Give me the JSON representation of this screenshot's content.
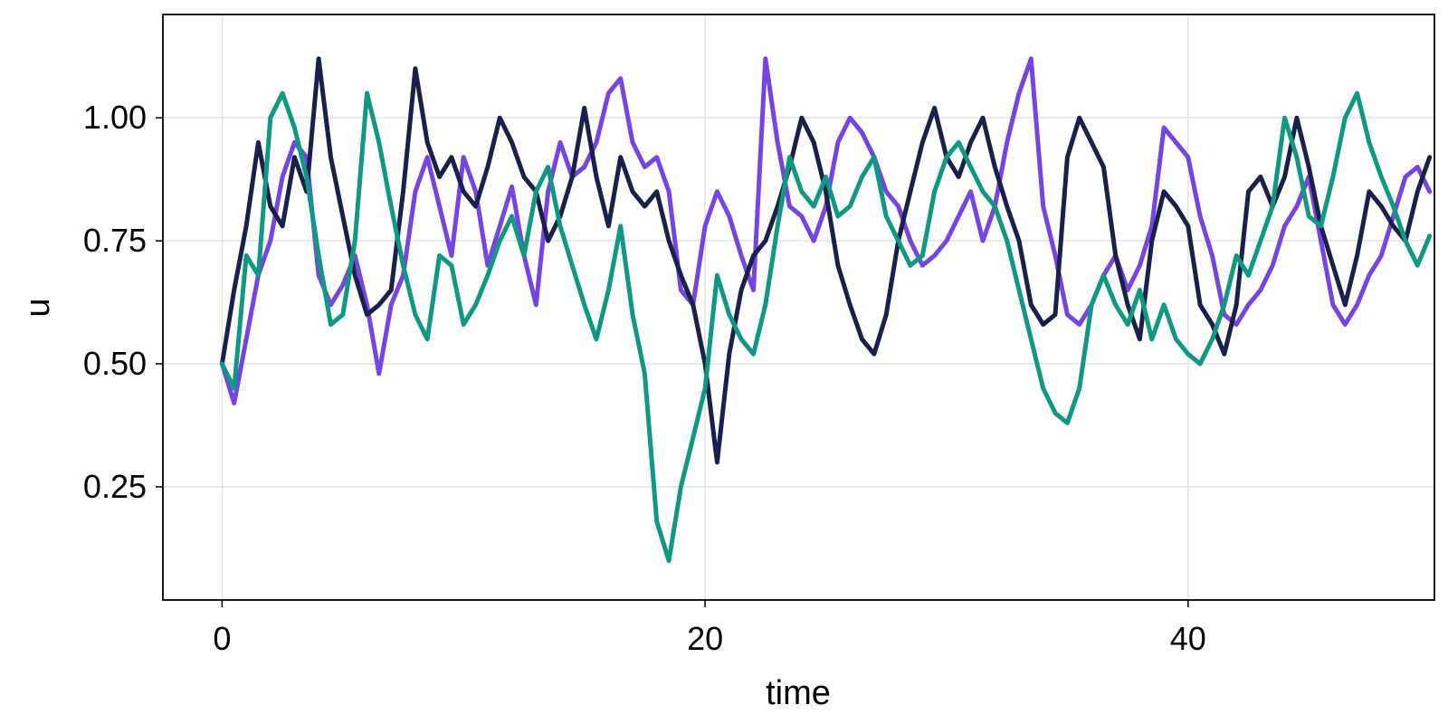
{
  "chart_data": {
    "type": "line",
    "title": "",
    "xlabel": "time",
    "ylabel": "u",
    "xlim": [
      -2.45,
      50.2
    ],
    "ylim": [
      0.02,
      1.21
    ],
    "xticks": [
      0,
      20,
      40
    ],
    "xtick_labels": [
      "0",
      "20",
      "40"
    ],
    "yticks": [
      0.25,
      0.5,
      0.75,
      1.0
    ],
    "ytick_labels": [
      "0.25",
      "0.50",
      "0.75",
      "1.00"
    ],
    "grid": true,
    "legend": "none",
    "series": [
      {
        "color": "#7545e3",
        "x": [
          0,
          0.5,
          1,
          1.5,
          2,
          2.5,
          3,
          3.5,
          4,
          4.5,
          5,
          5.5,
          6,
          6.5,
          7,
          7.5,
          8,
          8.5,
          9,
          9.5,
          10,
          10.5,
          11,
          11.5,
          12,
          12.5,
          13,
          13.5,
          14,
          14.5,
          15,
          15.5,
          16,
          16.5,
          17,
          17.5,
          18,
          18.5,
          19,
          19.5,
          20,
          20.5,
          21,
          21.5,
          22,
          22.5,
          23,
          23.5,
          24,
          24.5,
          25,
          25.5,
          26,
          26.5,
          27,
          27.5,
          28,
          28.5,
          29,
          29.5,
          30,
          30.5,
          31,
          31.5,
          32,
          32.5,
          33,
          33.5,
          34,
          34.5,
          35,
          35.5,
          36,
          36.5,
          37,
          37.5,
          38,
          38.5,
          39,
          39.5,
          40,
          40.5,
          41,
          41.5,
          42,
          42.5,
          43,
          43.5,
          44,
          44.5,
          45,
          45.5,
          46,
          46.5,
          47,
          47.5,
          48,
          48.5,
          49,
          49.5,
          50
        ],
        "y": [
          0.5,
          0.42,
          0.55,
          0.68,
          0.75,
          0.88,
          0.95,
          0.92,
          0.68,
          0.62,
          0.66,
          0.72,
          0.62,
          0.48,
          0.62,
          0.68,
          0.85,
          0.92,
          0.82,
          0.72,
          0.92,
          0.85,
          0.7,
          0.78,
          0.86,
          0.72,
          0.62,
          0.85,
          0.95,
          0.88,
          0.9,
          0.95,
          1.05,
          1.08,
          0.95,
          0.9,
          0.92,
          0.85,
          0.65,
          0.62,
          0.78,
          0.85,
          0.8,
          0.72,
          0.65,
          1.12,
          0.95,
          0.82,
          0.8,
          0.75,
          0.82,
          0.95,
          1.0,
          0.97,
          0.92,
          0.85,
          0.82,
          0.75,
          0.7,
          0.72,
          0.75,
          0.8,
          0.85,
          0.75,
          0.82,
          0.95,
          1.05,
          1.12,
          0.82,
          0.72,
          0.6,
          0.58,
          0.62,
          0.68,
          0.72,
          0.65,
          0.7,
          0.78,
          0.98,
          0.95,
          0.92,
          0.8,
          0.72,
          0.6,
          0.58,
          0.62,
          0.65,
          0.7,
          0.78,
          0.82,
          0.88,
          0.75,
          0.62,
          0.58,
          0.62,
          0.68,
          0.72,
          0.8,
          0.88,
          0.9,
          0.85
        ]
      },
      {
        "color": "#1b1f4b",
        "x": [
          0,
          0.5,
          1,
          1.5,
          2,
          2.5,
          3,
          3.5,
          4,
          4.5,
          5,
          5.5,
          6,
          6.5,
          7,
          7.5,
          8,
          8.5,
          9,
          9.5,
          10,
          10.5,
          11,
          11.5,
          12,
          12.5,
          13,
          13.5,
          14,
          14.5,
          15,
          15.5,
          16,
          16.5,
          17,
          17.5,
          18,
          18.5,
          19,
          19.5,
          20,
          20.5,
          21,
          21.5,
          22,
          22.5,
          23,
          23.5,
          24,
          24.5,
          25,
          25.5,
          26,
          26.5,
          27,
          27.5,
          28,
          28.5,
          29,
          29.5,
          30,
          30.5,
          31,
          31.5,
          32,
          32.5,
          33,
          33.5,
          34,
          34.5,
          35,
          35.5,
          36,
          36.5,
          37,
          37.5,
          38,
          38.5,
          39,
          39.5,
          40,
          40.5,
          41,
          41.5,
          42,
          42.5,
          43,
          43.5,
          44,
          44.5,
          45,
          45.5,
          46,
          46.5,
          47,
          47.5,
          48,
          48.5,
          49,
          49.5,
          50
        ],
        "y": [
          0.5,
          0.65,
          0.78,
          0.95,
          0.82,
          0.78,
          0.92,
          0.85,
          1.12,
          0.92,
          0.8,
          0.68,
          0.6,
          0.62,
          0.65,
          0.85,
          1.1,
          0.95,
          0.88,
          0.92,
          0.85,
          0.82,
          0.9,
          1.0,
          0.95,
          0.88,
          0.85,
          0.75,
          0.8,
          0.88,
          1.02,
          0.88,
          0.78,
          0.92,
          0.85,
          0.82,
          0.85,
          0.75,
          0.68,
          0.62,
          0.5,
          0.3,
          0.52,
          0.65,
          0.72,
          0.75,
          0.82,
          0.9,
          1.0,
          0.95,
          0.85,
          0.7,
          0.62,
          0.55,
          0.52,
          0.6,
          0.75,
          0.85,
          0.95,
          1.02,
          0.92,
          0.88,
          0.95,
          1.0,
          0.9,
          0.82,
          0.75,
          0.62,
          0.58,
          0.6,
          0.92,
          1.0,
          0.95,
          0.9,
          0.72,
          0.62,
          0.55,
          0.75,
          0.85,
          0.82,
          0.78,
          0.62,
          0.58,
          0.52,
          0.62,
          0.85,
          0.88,
          0.82,
          0.88,
          1.0,
          0.9,
          0.78,
          0.7,
          0.62,
          0.72,
          0.85,
          0.82,
          0.78,
          0.75,
          0.85,
          0.92
        ]
      },
      {
        "color": "#0f9882",
        "x": [
          0,
          0.5,
          1,
          1.5,
          2,
          2.5,
          3,
          3.5,
          4,
          4.5,
          5,
          5.5,
          6,
          6.5,
          7,
          7.5,
          8,
          8.5,
          9,
          9.5,
          10,
          10.5,
          11,
          11.5,
          12,
          12.5,
          13,
          13.5,
          14,
          14.5,
          15,
          15.5,
          16,
          16.5,
          17,
          17.5,
          18,
          18.5,
          19,
          19.5,
          20,
          20.5,
          21,
          21.5,
          22,
          22.5,
          23,
          23.5,
          24,
          24.5,
          25,
          25.5,
          26,
          26.5,
          27,
          27.5,
          28,
          28.5,
          29,
          29.5,
          30,
          30.5,
          31,
          31.5,
          32,
          32.5,
          33,
          33.5,
          34,
          34.5,
          35,
          35.5,
          36,
          36.5,
          37,
          37.5,
          38,
          38.5,
          39,
          39.5,
          40,
          40.5,
          41,
          41.5,
          42,
          42.5,
          43,
          43.5,
          44,
          44.5,
          45,
          45.5,
          46,
          46.5,
          47,
          47.5,
          48,
          48.5,
          49,
          49.5,
          50
        ],
        "y": [
          0.5,
          0.45,
          0.72,
          0.68,
          1.0,
          1.05,
          0.98,
          0.88,
          0.72,
          0.58,
          0.6,
          0.75,
          1.05,
          0.95,
          0.82,
          0.7,
          0.6,
          0.55,
          0.72,
          0.7,
          0.58,
          0.62,
          0.68,
          0.75,
          0.8,
          0.72,
          0.85,
          0.9,
          0.78,
          0.7,
          0.62,
          0.55,
          0.65,
          0.78,
          0.6,
          0.48,
          0.18,
          0.1,
          0.25,
          0.35,
          0.45,
          0.68,
          0.6,
          0.55,
          0.52,
          0.62,
          0.78,
          0.92,
          0.85,
          0.82,
          0.88,
          0.8,
          0.82,
          0.88,
          0.92,
          0.8,
          0.75,
          0.7,
          0.72,
          0.85,
          0.92,
          0.95,
          0.9,
          0.85,
          0.82,
          0.75,
          0.65,
          0.55,
          0.45,
          0.4,
          0.38,
          0.45,
          0.62,
          0.68,
          0.62,
          0.58,
          0.65,
          0.55,
          0.62,
          0.55,
          0.52,
          0.5,
          0.55,
          0.62,
          0.72,
          0.68,
          0.75,
          0.82,
          1.0,
          0.92,
          0.8,
          0.78,
          0.88,
          1.0,
          1.05,
          0.95,
          0.88,
          0.82,
          0.75,
          0.7,
          0.76
        ]
      }
    ]
  }
}
